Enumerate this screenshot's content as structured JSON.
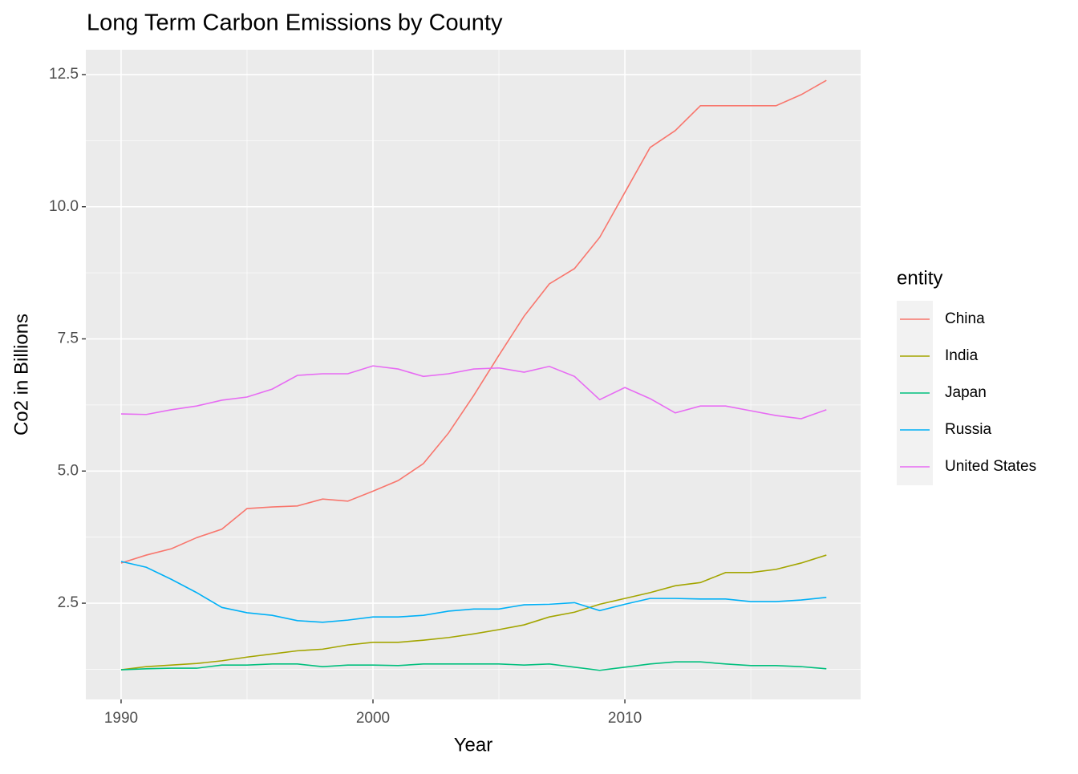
{
  "chart_data": {
    "type": "line",
    "title": "Long Term Carbon Emissions by County",
    "x_label": "Year",
    "y_label": "Co2 in Billions",
    "legend_title": "entity",
    "legend_position": "right",
    "grid": true,
    "x": [
      1990,
      1991,
      1992,
      1993,
      1994,
      1995,
      1996,
      1997,
      1998,
      1999,
      2000,
      2001,
      2002,
      2003,
      2004,
      2005,
      2006,
      2007,
      2008,
      2009,
      2010,
      2011,
      2012,
      2013,
      2014,
      2015,
      2016,
      2017,
      2018
    ],
    "xlim": [
      1988.6,
      2019.36
    ],
    "xticks": [
      1990,
      2000,
      2010
    ],
    "ylim": [
      0.68,
      12.97
    ],
    "yticks": [
      2.5,
      {
        "value": 5,
        "label": "5.0"
      },
      7.5,
      {
        "value": 10,
        "label": "10.0"
      },
      12.5
    ],
    "series": [
      {
        "name": "China",
        "color": "#F8766D",
        "values": [
          3.26,
          3.41,
          3.53,
          3.74,
          3.9,
          4.29,
          4.32,
          4.34,
          4.47,
          4.43,
          4.62,
          4.82,
          5.14,
          5.72,
          6.43,
          7.19,
          7.93,
          8.54,
          8.83,
          9.42,
          10.27,
          11.12,
          11.44,
          11.91,
          11.91,
          11.91,
          11.91,
          12.12,
          12.39
        ]
      },
      {
        "name": "India",
        "color": "#A3A500",
        "values": [
          1.24,
          1.3,
          1.33,
          1.36,
          1.41,
          1.48,
          1.54,
          1.6,
          1.63,
          1.71,
          1.76,
          1.76,
          1.8,
          1.85,
          1.92,
          2.0,
          2.09,
          2.24,
          2.33,
          2.48,
          2.59,
          2.7,
          2.83,
          2.89,
          3.08,
          3.08,
          3.14,
          3.26,
          3.41
        ]
      },
      {
        "name": "Japan",
        "color": "#00BF7D",
        "values": [
          1.24,
          1.26,
          1.27,
          1.27,
          1.33,
          1.33,
          1.35,
          1.35,
          1.3,
          1.33,
          1.33,
          1.32,
          1.35,
          1.35,
          1.35,
          1.35,
          1.33,
          1.35,
          1.29,
          1.23,
          1.29,
          1.35,
          1.39,
          1.39,
          1.35,
          1.32,
          1.32,
          1.3,
          1.26
        ]
      },
      {
        "name": "Russia",
        "color": "#00B0F6",
        "values": [
          3.29,
          3.18,
          2.95,
          2.7,
          2.42,
          2.32,
          2.27,
          2.17,
          2.14,
          2.18,
          2.24,
          2.24,
          2.27,
          2.35,
          2.39,
          2.39,
          2.47,
          2.48,
          2.51,
          2.36,
          2.48,
          2.59,
          2.59,
          2.58,
          2.58,
          2.53,
          2.53,
          2.56,
          2.61
        ]
      },
      {
        "name": "United States",
        "color": "#E76BF3",
        "values": [
          6.08,
          6.07,
          6.16,
          6.23,
          6.34,
          6.4,
          6.55,
          6.81,
          6.84,
          6.84,
          6.99,
          6.93,
          6.79,
          6.84,
          6.93,
          6.95,
          6.87,
          6.98,
          6.79,
          6.35,
          6.58,
          6.37,
          6.1,
          6.23,
          6.23,
          6.14,
          6.05,
          5.99,
          6.16
        ]
      }
    ]
  }
}
